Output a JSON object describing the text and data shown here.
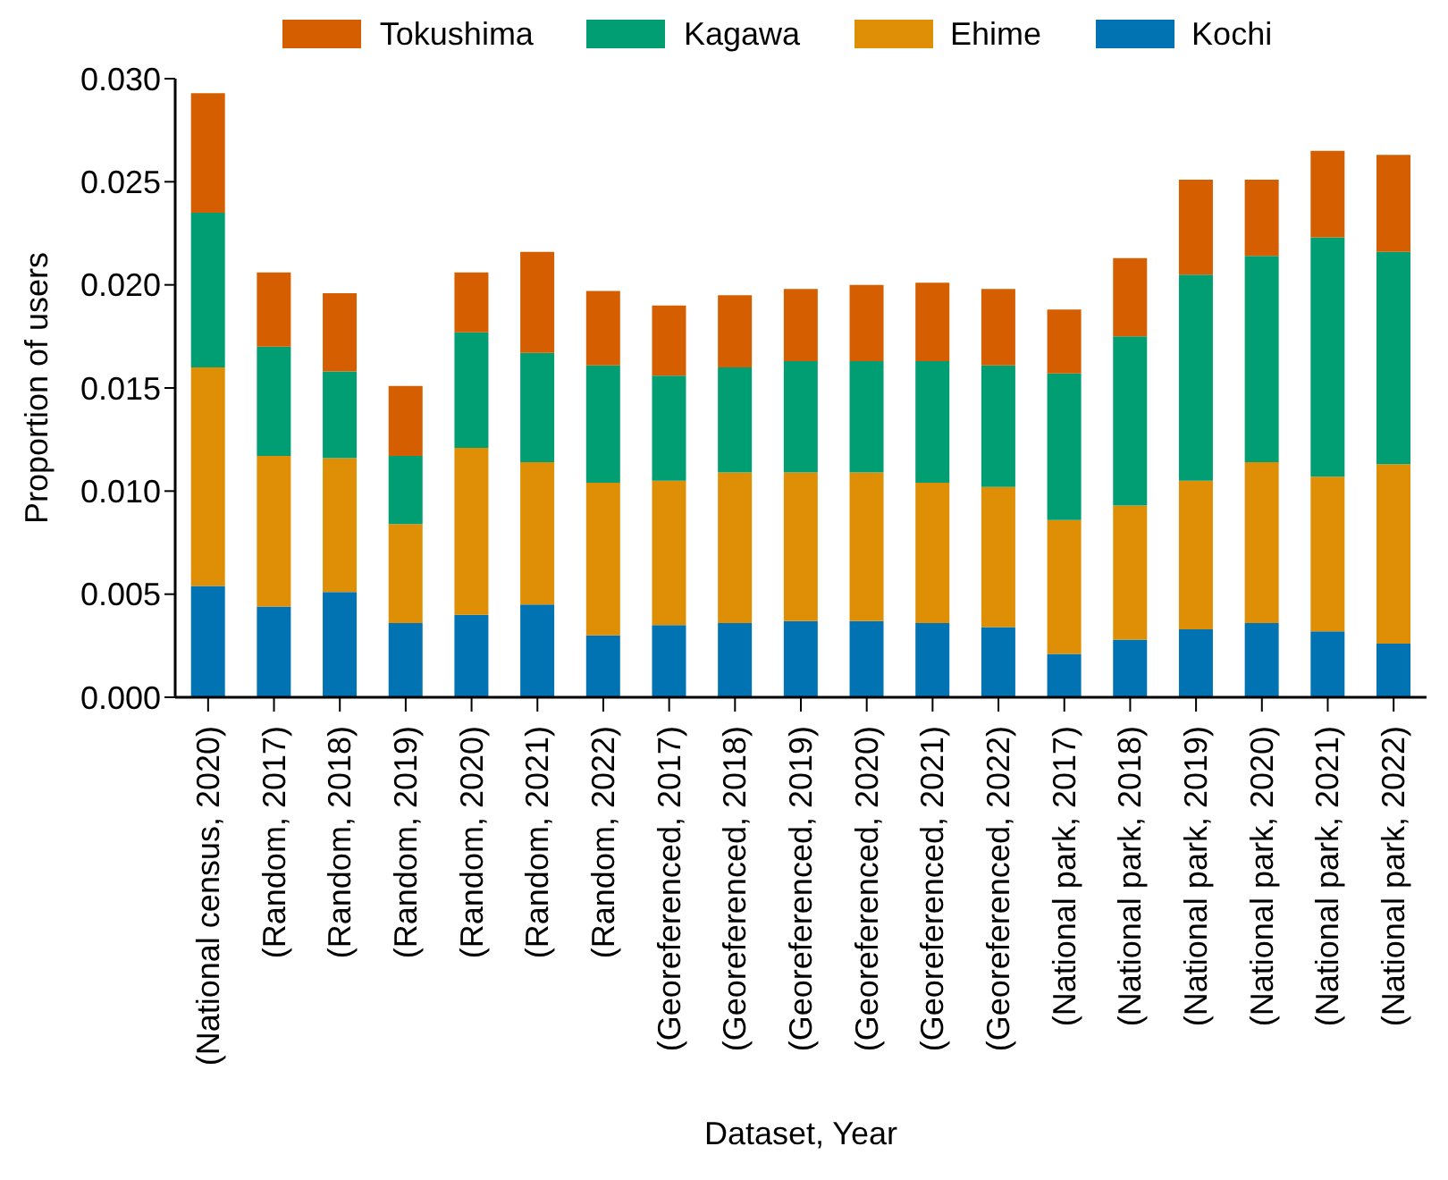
{
  "chart_data": {
    "type": "bar",
    "stacked": true,
    "xlabel": "Dataset, Year",
    "ylabel": "Proportion of users",
    "categories": [
      "(National census, 2020)",
      "(Random, 2017)",
      "(Random, 2018)",
      "(Random, 2019)",
      "(Random, 2020)",
      "(Random, 2021)",
      "(Random, 2022)",
      "(Georeferenced, 2017)",
      "(Georeferenced, 2018)",
      "(Georeferenced, 2019)",
      "(Georeferenced, 2020)",
      "(Georeferenced, 2021)",
      "(Georeferenced, 2022)",
      "(National park, 2017)",
      "(National park, 2018)",
      "(National park, 2019)",
      "(National park, 2020)",
      "(National park, 2021)",
      "(National park, 2022)"
    ],
    "series": [
      {
        "name": "Kochi",
        "color": "#0173b2",
        "values": [
          0.0054,
          0.0044,
          0.0051,
          0.0036,
          0.004,
          0.0045,
          0.003,
          0.0035,
          0.0036,
          0.0037,
          0.0037,
          0.0036,
          0.0034,
          0.0021,
          0.0028,
          0.0033,
          0.0036,
          0.0032,
          0.0026
        ]
      },
      {
        "name": "Ehime",
        "color": "#de8f05",
        "values": [
          0.0106,
          0.0073,
          0.0065,
          0.0048,
          0.0081,
          0.0069,
          0.0074,
          0.007,
          0.0073,
          0.0072,
          0.0072,
          0.0068,
          0.0068,
          0.0065,
          0.0065,
          0.0072,
          0.0078,
          0.0075,
          0.0087
        ]
      },
      {
        "name": "Kagawa",
        "color": "#029e73",
        "values": [
          0.0075,
          0.0053,
          0.0042,
          0.0033,
          0.0056,
          0.0053,
          0.0057,
          0.0051,
          0.0051,
          0.0054,
          0.0054,
          0.0059,
          0.0059,
          0.0071,
          0.0082,
          0.01,
          0.01,
          0.0116,
          0.0103
        ]
      },
      {
        "name": "Tokushima",
        "color": "#d55e00",
        "values": [
          0.0058,
          0.0036,
          0.0038,
          0.0034,
          0.0029,
          0.0049,
          0.0036,
          0.0034,
          0.0035,
          0.0035,
          0.0037,
          0.0038,
          0.0037,
          0.0031,
          0.0038,
          0.0046,
          0.0037,
          0.0042,
          0.0047
        ]
      }
    ],
    "ylim": [
      0,
      0.03
    ],
    "yticks": [
      {
        "value": 0,
        "label": "0.000"
      },
      {
        "value": 0.005,
        "label": "0.005"
      },
      {
        "value": 0.01,
        "label": "0.010"
      },
      {
        "value": 0.015,
        "label": "0.015"
      },
      {
        "value": 0.02,
        "label": "0.020"
      },
      {
        "value": 0.025,
        "label": "0.025"
      },
      {
        "value": 0.03,
        "label": "0.030"
      }
    ],
    "grid": false,
    "legend": "top"
  }
}
